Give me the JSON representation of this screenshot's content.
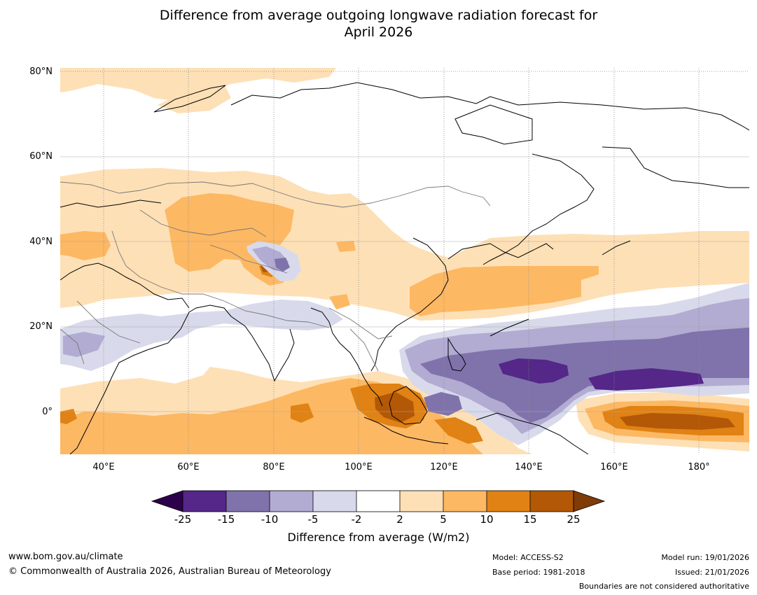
{
  "title": {
    "line1": "Difference from average outgoing longwave radiation forecast for",
    "line2": "April 2026"
  },
  "map": {
    "lat_labels": [
      "80°N",
      "60°N",
      "40°N",
      "20°N",
      "0°"
    ],
    "lon_labels": [
      "40°E",
      "60°E",
      "80°E",
      "100°E",
      "120°E",
      "140°E",
      "160°E",
      "180°"
    ]
  },
  "colorbar": {
    "label": "Difference from average (W/m2)",
    "ticks": [
      "-25",
      "-15",
      "-10",
      "-5",
      "-2",
      "2",
      "5",
      "10",
      "15",
      "25"
    ],
    "colors": {
      "below_min": "#2d004b",
      "c1": "#542788",
      "c2": "#8073ac",
      "c3": "#b2abd2",
      "c4": "#d8daeb",
      "c5": "#ffffff",
      "c6": "#fee0b6",
      "c7": "#fdb863",
      "c8": "#e08214",
      "c9": "#b35806",
      "above_max": "#7f3b08"
    }
  },
  "footer": {
    "website": "www.bom.gov.au/climate",
    "copyright": "© Commonwealth of Australia 2026, Australian Bureau of Meteorology",
    "model": "Model: ACCESS-S2",
    "base_period": "Base period: 1981-2018",
    "model_run": "Model run: 19/01/2026",
    "issued": "Issued: 21/01/2026",
    "disclaimer": "Boundaries are not considered authoritative"
  }
}
